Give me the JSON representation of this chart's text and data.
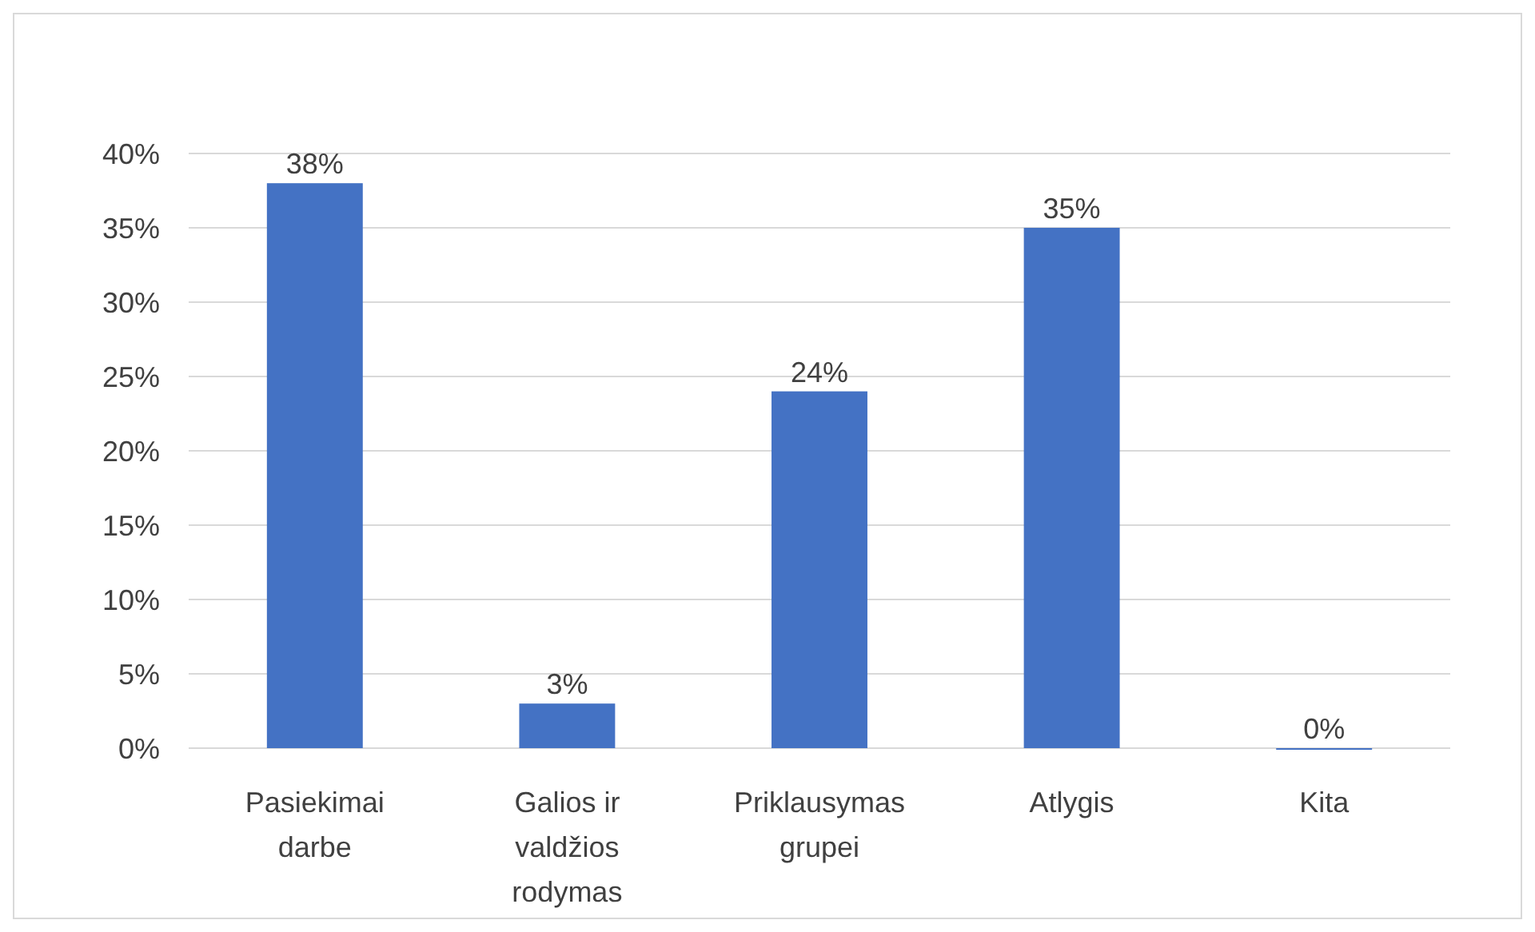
{
  "chart_data": {
    "type": "bar",
    "categories": [
      "Pasiekimai darbe",
      "Galios ir valdžios rodymas",
      "Priklausymas grupei",
      "Atlygis",
      "Kita"
    ],
    "values": [
      38,
      3,
      24,
      35,
      0
    ],
    "value_labels": [
      "38%",
      "3%",
      "24%",
      "35%",
      "0%"
    ],
    "color": "#4472c4",
    "ylim": [
      0,
      40
    ],
    "yticks": [
      {
        "value": 0,
        "label": "0%"
      },
      {
        "value": 5,
        "label": "5%"
      },
      {
        "value": 10,
        "label": "10%"
      },
      {
        "value": 15,
        "label": "15%"
      },
      {
        "value": 20,
        "label": "20%"
      },
      {
        "value": 25,
        "label": "25%"
      },
      {
        "value": 30,
        "label": "30%"
      },
      {
        "value": 35,
        "label": "35%"
      },
      {
        "value": 40,
        "label": "40%"
      }
    ],
    "grid": "y"
  }
}
